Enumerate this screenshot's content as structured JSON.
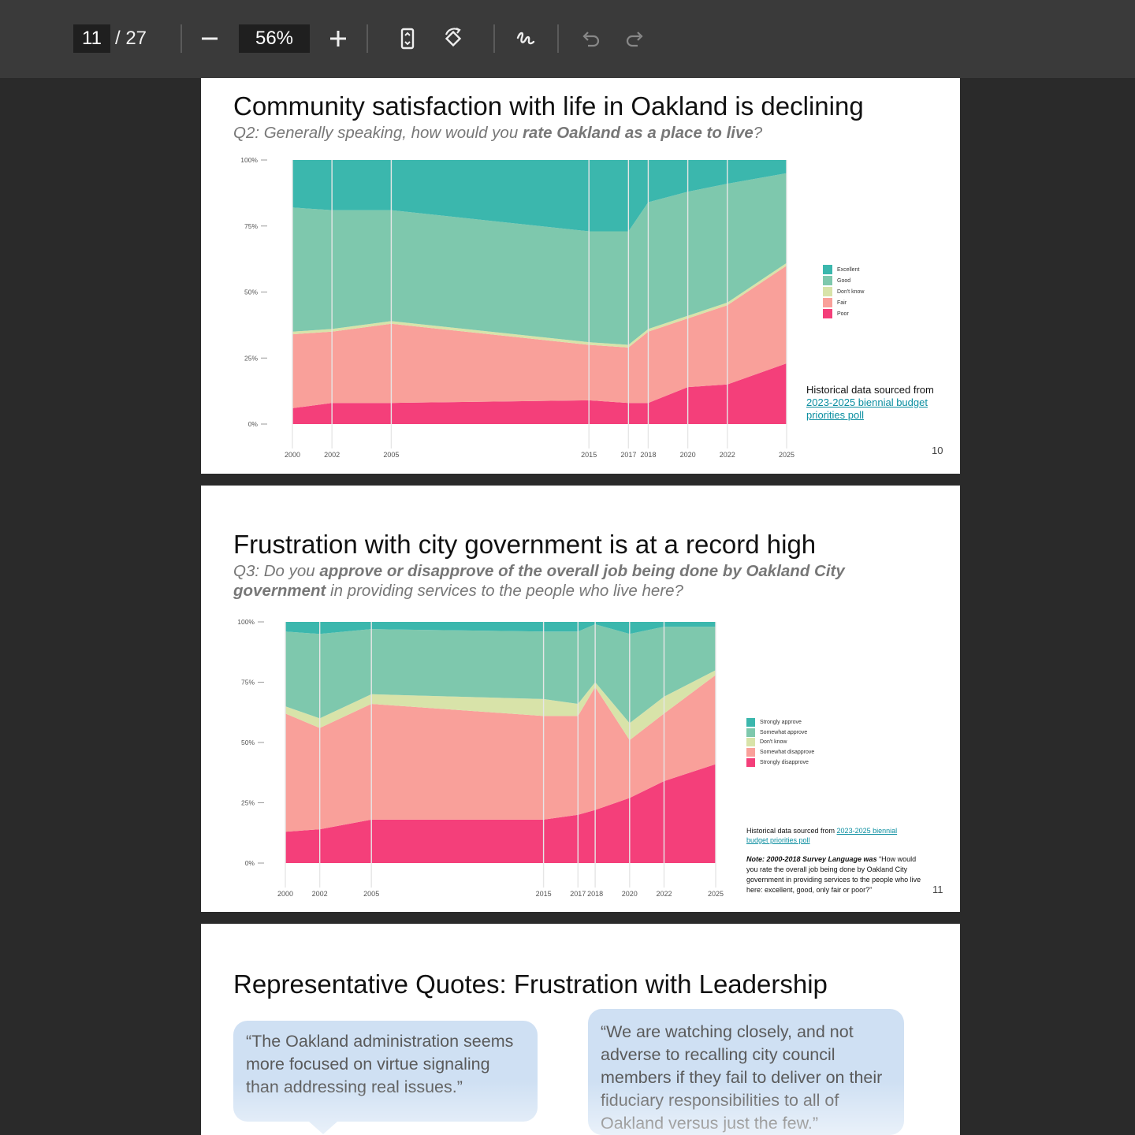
{
  "toolbar": {
    "page_current": "11",
    "page_total": "/ 27",
    "zoom": "56%",
    "icons": [
      "zoom-out-icon",
      "zoom-in-icon",
      "fit-page-icon",
      "rotate-icon",
      "draw-icon",
      "undo-icon",
      "redo-icon"
    ]
  },
  "slides": [
    {
      "title": "Community satisfaction with life in Oakland is declining",
      "subtitle_parts": [
        "Q2: Generally speaking, how would you ",
        "rate Oakland as a place to live",
        "?"
      ],
      "source_text": "Historical data sourced from ",
      "source_link": "2023-2025 biennial budget priorities poll",
      "page_number": "10",
      "chart_data": {
        "type": "area",
        "stacked": true,
        "x": [
          2000,
          2002,
          2005,
          2015,
          2017,
          2018,
          2020,
          2022,
          2025
        ],
        "x_tick_labels": [
          "2000",
          "2002",
          "2005",
          "2015",
          "2017",
          "2018",
          "2020",
          "2022",
          "2025"
        ],
        "y_ticks": [
          "0%",
          "25%",
          "50%",
          "75%",
          "100%"
        ],
        "ylim": [
          0,
          100
        ],
        "legend_position": "right",
        "series": [
          {
            "name": "Poor",
            "color": "#f43f7a",
            "values": [
              6,
              8,
              8,
              9,
              8,
              8,
              14,
              15,
              23
            ]
          },
          {
            "name": "Fair",
            "color": "#f9a09a",
            "values": [
              28,
              27,
              30,
              21,
              21,
              27,
              26,
              30,
              37
            ]
          },
          {
            "name": "Don't know",
            "color": "#d8e3a9",
            "values": [
              1,
              1,
              1,
              1,
              1,
              1,
              1,
              1,
              1
            ]
          },
          {
            "name": "Good",
            "color": "#7ec8ad",
            "values": [
              47,
              45,
              42,
              42,
              43,
              48,
              47,
              45,
              34
            ]
          },
          {
            "name": "Excellent",
            "color": "#3bb7ad",
            "values": [
              18,
              19,
              19,
              27,
              27,
              16,
              12,
              9,
              5
            ]
          }
        ]
      }
    },
    {
      "title": "Frustration with city government is at a record high",
      "subtitle_parts": [
        "Q3: Do you ",
        "approve or disapprove of the overall job being done by Oakland City government",
        " in providing services to the people who live here?"
      ],
      "source_text": "Historical data sourced from ",
      "source_link": "2023-2025 biennial budget priorities poll",
      "note_bold": "Note: 2000-2018 Survey Language was",
      "note_text": " “How would you rate the overall job being done by Oakland City government in providing services to the people who live here: excellent, good, only fair or poor?”",
      "page_number": "11",
      "chart_data": {
        "type": "area",
        "stacked": true,
        "x": [
          2000,
          2002,
          2005,
          2015,
          2017,
          2018,
          2020,
          2022,
          2025
        ],
        "x_tick_labels": [
          "2000",
          "2002",
          "2005",
          "2015",
          "2017",
          "2018",
          "2020",
          "2022",
          "2025"
        ],
        "y_ticks": [
          "0%",
          "25%",
          "50%",
          "75%",
          "100%"
        ],
        "ylim": [
          0,
          100
        ],
        "legend_position": "right",
        "series": [
          {
            "name": "Strongly disapprove",
            "color": "#f43f7a",
            "values": [
              13,
              14,
              18,
              18,
              20,
              22,
              27,
              34,
              41
            ]
          },
          {
            "name": "Somewhat disapprove",
            "color": "#f9a09a",
            "values": [
              49,
              42,
              48,
              43,
              41,
              51,
              24,
              28,
              37
            ]
          },
          {
            "name": "Don't know",
            "color": "#d8e3a9",
            "values": [
              3,
              4,
              4,
              7,
              5,
              2,
              7,
              7,
              2
            ]
          },
          {
            "name": "Somewhat approve",
            "color": "#7ec8ad",
            "values": [
              31,
              35,
              27,
              28,
              30,
              24,
              37,
              29,
              18
            ]
          },
          {
            "name": "Strongly approve",
            "color": "#3bb7ad",
            "values": [
              4,
              5,
              3,
              4,
              4,
              1,
              5,
              2,
              2
            ]
          }
        ]
      }
    }
  ],
  "slide3": {
    "title": "Representative Quotes: Frustration with Leadership",
    "quote1": "“The Oakland administration seems more focused on virtue signaling than addressing real issues.”",
    "quote2": "“We are watching closely, and not adverse to recalling city council members if they fail to deliver on their fiduciary responsibilities to all of Oakland versus just the few.”"
  }
}
